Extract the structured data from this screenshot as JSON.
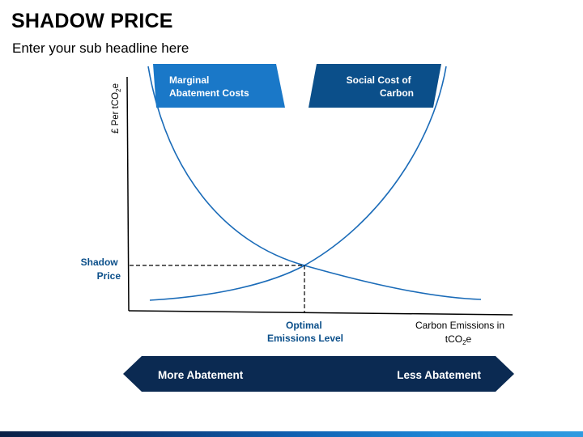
{
  "header": {
    "title": "SHADOW PRICE",
    "subtitle": "Enter your sub headline here"
  },
  "diagram": {
    "y_axis_label": "£ Per tCO",
    "y_axis_label_sub": "2",
    "y_axis_label_end": "e",
    "x_axis_label_line1": "Carbon Emissions in",
    "x_axis_label_line2_pre": "tCO",
    "x_axis_label_line2_sub": "2",
    "x_axis_label_line2_post": "e",
    "shadow_price_line1": "Shadow",
    "shadow_price_line2": "Price",
    "optimal_line1": "Optimal",
    "optimal_line2": "Emissions Level",
    "mac_box_line1": "Marginal",
    "mac_box_line2": "Abatement Costs",
    "scc_box_line1": "Social Cost of",
    "scc_box_line2": "Carbon",
    "arrow_left_label": "More Abatement",
    "arrow_right_label": "Less Abatement"
  },
  "colors": {
    "curve": "#1a6bb8",
    "mac_box": "#1a78c8",
    "scc_box": "#0b4f8a",
    "arrow": "#0b2a52",
    "axis": "#000000"
  }
}
